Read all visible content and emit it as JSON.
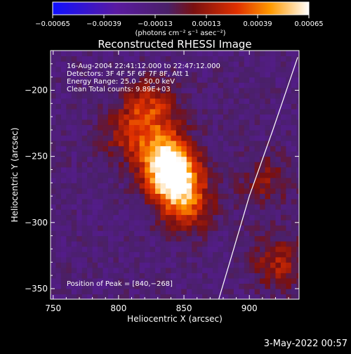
{
  "chart_data": {
    "type": "heatmap",
    "title": "Reconstructed RHESSI Image",
    "xlabel": "Heliocentric X (arcsec)",
    "ylabel": "Heliocentric Y (arcsec)",
    "xlim": [
      748,
      938
    ],
    "ylim": [
      -358,
      -170
    ],
    "x_ticks": [
      750,
      800,
      850,
      900
    ],
    "x_tick_labels": [
      "750",
      "800",
      "850",
      "900"
    ],
    "y_ticks": [
      -200,
      -250,
      -300,
      -350
    ],
    "y_tick_labels": [
      "−200",
      "−250",
      "−300",
      "−350"
    ],
    "colorbar": {
      "min": -0.00065,
      "max": 0.00065,
      "tick_values": [
        -0.00065,
        -0.00039,
        -0.00013,
        0.00013,
        0.00039,
        0.00065
      ],
      "tick_labels": [
        "−0.00065",
        "−0.00039",
        "−0.00013",
        "0.00013",
        "0.00039",
        "0.00065"
      ],
      "units_label": "(photons cm⁻² s⁻¹ asec⁻²)",
      "colormap_stops": [
        "#1010ff",
        "#5a1aa0",
        "#4a2068",
        "#7a1010",
        "#e03000",
        "#ff9a00",
        "#ffffff"
      ]
    },
    "annotations": [
      "16‑Aug‑2004 22:41:12.000 to 22:47:12.000",
      "Detectors: 3F 4F 5F 6F 7F 8F, Att 1",
      "Energy Range: 25.0 – 50.0 keV",
      "Clean    Total counts: 9.89E+03"
    ],
    "peak_label": "Position of Peak = [840,−268]",
    "peak_x": 840,
    "peak_y": -268,
    "sources": [
      {
        "x": 840,
        "y": -268,
        "intensity": 1.0
      },
      {
        "x": 832,
        "y": -248,
        "intensity": 0.6
      },
      {
        "x": 822,
        "y": -215,
        "intensity": 0.45
      },
      {
        "x": 850,
        "y": -290,
        "intensity": 0.45
      },
      {
        "x": 805,
        "y": -235,
        "intensity": 0.3
      },
      {
        "x": 920,
        "y": -332,
        "intensity": 0.35
      },
      {
        "x": 910,
        "y": -270,
        "intensity": 0.25
      }
    ],
    "limb": [
      [
        937,
        -175
      ],
      [
        918,
        -230
      ],
      [
        900,
        -280
      ],
      [
        885,
        -330
      ],
      [
        876,
        -360
      ]
    ],
    "footer_date": "3‑May‑2022 00:57"
  }
}
